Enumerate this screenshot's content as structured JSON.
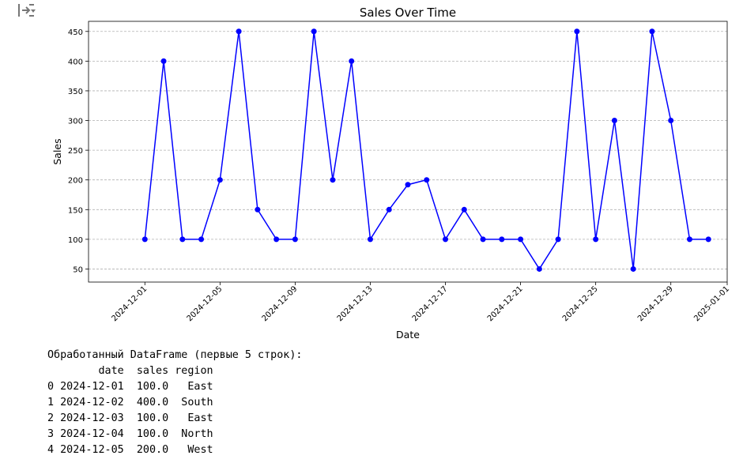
{
  "output_icon": "output-toggle-icon",
  "chart_data": {
    "type": "line",
    "title": "Sales Over Time",
    "xlabel": "Date",
    "ylabel": "Sales",
    "x_tick_labels": [
      "2024-12-01",
      "2024-12-05",
      "2024-12-09",
      "2024-12-13",
      "2024-12-17",
      "2024-12-21",
      "2024-12-25",
      "2024-12-29",
      "2025-01-01"
    ],
    "y_ticks": [
      50,
      100,
      150,
      200,
      250,
      300,
      350,
      400,
      450
    ],
    "ylim": [
      28,
      467
    ],
    "xlim": [
      "2024-11-28",
      "2025-01-01"
    ],
    "grid": "y-dashed",
    "color": "#0000ff",
    "x": [
      "2024-12-01",
      "2024-12-02",
      "2024-12-03",
      "2024-12-04",
      "2024-12-05",
      "2024-12-06",
      "2024-12-07",
      "2024-12-08",
      "2024-12-09",
      "2024-12-10",
      "2024-12-11",
      "2024-12-12",
      "2024-12-13",
      "2024-12-14",
      "2024-12-15",
      "2024-12-16",
      "2024-12-17",
      "2024-12-18",
      "2024-12-19",
      "2024-12-20",
      "2024-12-21",
      "2024-12-22",
      "2024-12-23",
      "2024-12-24",
      "2024-12-25",
      "2024-12-26",
      "2024-12-27",
      "2024-12-28",
      "2024-12-29",
      "2024-12-30",
      "2024-12-31"
    ],
    "values": [
      100,
      400,
      100,
      100,
      200,
      450,
      150,
      100,
      100,
      450,
      200,
      400,
      100,
      150,
      192,
      200,
      100,
      150,
      100,
      100,
      100,
      50,
      100,
      450,
      100,
      300,
      50,
      450,
      300,
      100,
      100
    ]
  },
  "console": {
    "header": "Обработанный DataFrame (первые 5 строк):",
    "columns_line": "        date  sales region",
    "rows": [
      "0 2024-12-01  100.0   East",
      "1 2024-12-02  400.0  South",
      "2 2024-12-03  100.0   East",
      "3 2024-12-04  100.0  North",
      "4 2024-12-05  200.0   West"
    ]
  }
}
